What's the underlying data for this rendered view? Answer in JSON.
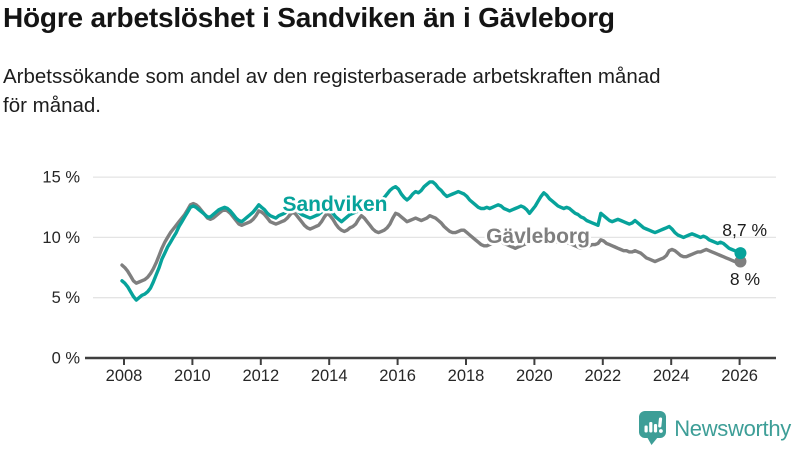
{
  "header": {
    "title": "Högre arbetslöshet i Sandviken än i Gävleborg",
    "subtitle": "Arbetssökande som andel av den registerbaserade arbetskraften månad\nför månad."
  },
  "footer": {
    "brand": "Newsworthy",
    "brand_color": "#3d9e97"
  },
  "chart_data": {
    "type": "line",
    "unit": "%",
    "x_start_year": 2008,
    "x_interval": "monthly",
    "x_ticks": [
      2008,
      2010,
      2012,
      2014,
      2016,
      2018,
      2020,
      2022,
      2024,
      2026
    ],
    "y_ticks": [
      0,
      5,
      10,
      15
    ],
    "ylim": [
      0,
      16.4
    ],
    "grid": true,
    "grid_color": "#e4e4e4",
    "axis_color": "#3f3f3f",
    "tick_text_color": "#272727",
    "end_label_color": "#1c1c1c",
    "legend_position": "inline-labels",
    "series": [
      {
        "name": "Gävleborg",
        "color": "#7f7f7f",
        "end_label": "8 %",
        "values": [
          7.7,
          7.5,
          7.2,
          6.8,
          6.4,
          6.2,
          6.3,
          6.4,
          6.5,
          6.7,
          7.0,
          7.4,
          7.9,
          8.5,
          9.1,
          9.6,
          10.0,
          10.4,
          10.7,
          11.0,
          11.3,
          11.6,
          11.9,
          12.3,
          12.7,
          12.8,
          12.7,
          12.5,
          12.2,
          11.9,
          11.6,
          11.5,
          11.6,
          11.8,
          12.0,
          12.2,
          12.3,
          12.2,
          12.0,
          11.7,
          11.4,
          11.1,
          11.0,
          11.1,
          11.2,
          11.3,
          11.5,
          11.8,
          12.2,
          12.1,
          11.9,
          11.6,
          11.3,
          11.2,
          11.1,
          11.2,
          11.3,
          11.4,
          11.6,
          11.9,
          12.1,
          11.9,
          11.6,
          11.3,
          11.0,
          10.8,
          10.7,
          10.8,
          10.9,
          11.0,
          11.3,
          11.7,
          12.0,
          11.8,
          11.5,
          11.1,
          10.8,
          10.6,
          10.5,
          10.6,
          10.8,
          10.9,
          11.1,
          11.5,
          11.8,
          11.6,
          11.3,
          11.0,
          10.7,
          10.5,
          10.4,
          10.5,
          10.6,
          10.8,
          11.1,
          11.6,
          12.0,
          11.9,
          11.7,
          11.5,
          11.3,
          11.4,
          11.5,
          11.6,
          11.5,
          11.4,
          11.5,
          11.6,
          11.8,
          11.7,
          11.6,
          11.4,
          11.2,
          10.9,
          10.7,
          10.5,
          10.4,
          10.4,
          10.5,
          10.6,
          10.6,
          10.4,
          10.2,
          10.0,
          9.8,
          9.6,
          9.4,
          9.3,
          9.3,
          9.4,
          9.5,
          9.6,
          9.8,
          9.7,
          9.5,
          9.4,
          9.3,
          9.2,
          9.1,
          9.2,
          9.3,
          9.4,
          9.5,
          9.5,
          9.6,
          9.7,
          9.8,
          10.0,
          10.1,
          10.0,
          9.9,
          9.8,
          9.7,
          9.6,
          9.5,
          9.5,
          9.6,
          9.5,
          9.4,
          9.3,
          9.2,
          9.1,
          9.1,
          9.2,
          9.3,
          9.4,
          9.4,
          9.5,
          9.8,
          9.7,
          9.5,
          9.4,
          9.3,
          9.2,
          9.1,
          9.0,
          8.9,
          8.9,
          8.8,
          8.8,
          8.9,
          8.8,
          8.7,
          8.5,
          8.3,
          8.2,
          8.1,
          8.0,
          8.1,
          8.2,
          8.3,
          8.5,
          8.9,
          9.0,
          8.9,
          8.7,
          8.5,
          8.4,
          8.4,
          8.5,
          8.6,
          8.7,
          8.8,
          8.8,
          8.9,
          9.0,
          8.9,
          8.8,
          8.7,
          8.6,
          8.5,
          8.4,
          8.3,
          8.2,
          8.1,
          8.0,
          8.0,
          8.0
        ]
      },
      {
        "name": "Sandviken",
        "color": "#07a39b",
        "end_label": "8,7 %",
        "values": [
          6.4,
          6.2,
          5.9,
          5.5,
          5.1,
          4.8,
          5.0,
          5.2,
          5.3,
          5.5,
          5.8,
          6.3,
          6.9,
          7.5,
          8.2,
          8.7,
          9.2,
          9.6,
          10.0,
          10.4,
          10.9,
          11.3,
          11.7,
          12.1,
          12.5,
          12.6,
          12.5,
          12.3,
          12.1,
          11.9,
          11.7,
          11.7,
          11.9,
          12.1,
          12.3,
          12.4,
          12.5,
          12.4,
          12.2,
          11.9,
          11.6,
          11.4,
          11.3,
          11.5,
          11.7,
          11.9,
          12.1,
          12.4,
          12.7,
          12.5,
          12.3,
          12.0,
          11.8,
          11.7,
          11.6,
          11.8,
          11.9,
          12.0,
          12.2,
          12.3,
          12.4,
          12.3,
          12.1,
          11.9,
          11.8,
          11.7,
          11.6,
          11.7,
          11.8,
          11.9,
          12.1,
          12.3,
          12.4,
          12.2,
          12.0,
          11.7,
          11.5,
          11.3,
          11.5,
          11.7,
          11.9,
          12.0,
          12.1,
          12.2,
          12.4,
          12.5,
          12.3,
          12.2,
          12.4,
          12.6,
          12.8,
          13.0,
          13.3,
          13.6,
          13.9,
          14.1,
          14.2,
          14.0,
          13.6,
          13.3,
          13.1,
          13.3,
          13.6,
          13.8,
          13.7,
          13.9,
          14.2,
          14.4,
          14.6,
          14.6,
          14.4,
          14.1,
          13.9,
          13.6,
          13.4,
          13.5,
          13.6,
          13.7,
          13.8,
          13.7,
          13.6,
          13.4,
          13.1,
          12.9,
          12.7,
          12.5,
          12.4,
          12.4,
          12.5,
          12.4,
          12.5,
          12.6,
          12.7,
          12.6,
          12.4,
          12.3,
          12.2,
          12.3,
          12.4,
          12.5,
          12.6,
          12.5,
          12.3,
          12.0,
          12.3,
          12.6,
          13.0,
          13.4,
          13.7,
          13.5,
          13.2,
          13.0,
          12.8,
          12.6,
          12.5,
          12.4,
          12.5,
          12.4,
          12.2,
          12.0,
          11.9,
          11.7,
          11.6,
          11.4,
          11.3,
          11.2,
          11.1,
          11.0,
          12.0,
          11.8,
          11.6,
          11.4,
          11.3,
          11.4,
          11.5,
          11.4,
          11.3,
          11.2,
          11.1,
          11.2,
          11.4,
          11.2,
          11.0,
          10.8,
          10.7,
          10.6,
          10.5,
          10.4,
          10.5,
          10.6,
          10.7,
          10.8,
          10.9,
          10.7,
          10.4,
          10.2,
          10.1,
          10.0,
          10.1,
          10.2,
          10.3,
          10.2,
          10.1,
          10.0,
          10.1,
          10.0,
          9.8,
          9.7,
          9.6,
          9.5,
          9.6,
          9.5,
          9.3,
          9.1,
          9.0,
          8.9,
          8.8,
          8.7
        ]
      }
    ]
  }
}
